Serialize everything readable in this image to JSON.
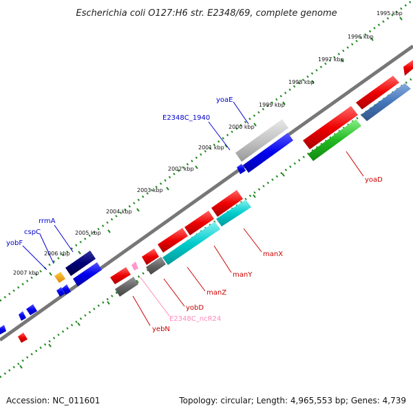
{
  "title": "Escherichia coli O127:H6 str. E2348/69, complete genome",
  "footer": {
    "accession": "Accession: NC_011601",
    "summary": "Topology: circular; Length: 4,965,553 bp; Genes: 4,739"
  },
  "ticks": [
    {
      "label": "1995 kbp"
    },
    {
      "label": "1996 kbp"
    },
    {
      "label": "1997 kbp"
    },
    {
      "label": "1998 kbp"
    },
    {
      "label": "1999 kbp"
    },
    {
      "label": "2000 kbp"
    },
    {
      "label": "2001 kbp"
    },
    {
      "label": "2002 kbp"
    },
    {
      "label": "2003 kbp"
    },
    {
      "label": "2004 kbp"
    },
    {
      "label": "2005 kbp"
    },
    {
      "label": "2006 kbp"
    },
    {
      "label": "2007 kbp"
    }
  ],
  "labels": {
    "yoaE": "yoaE",
    "E2348C_1940": "E2348C_1940",
    "rrmA": "rrmA",
    "cspC": "cspC",
    "yobF": "yobF",
    "yoaD": "yoaD",
    "manX": "manX",
    "manY": "manY",
    "manZ": "manZ",
    "yobD": "yobD",
    "E2348C_ncR24": "E2348C_ncR24",
    "yebN": "yebN"
  },
  "colors": {
    "forward_label": "#0000cc",
    "reverse_label": "#cc0000",
    "ncrna_label": "#ff88bb",
    "tick_marks": "#228822",
    "backbone": "#777777"
  }
}
